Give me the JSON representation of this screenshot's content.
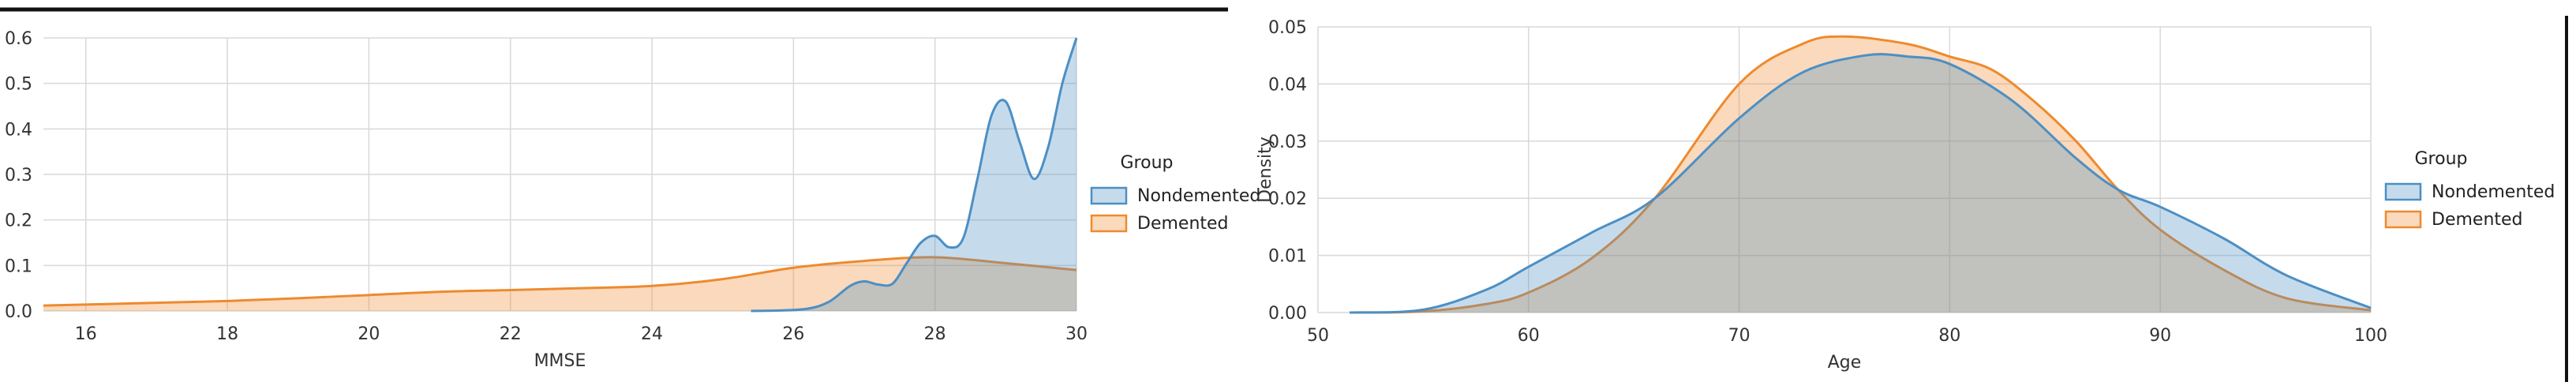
{
  "colors": {
    "nondemented": "#4c8fc4",
    "demented": "#ee8a2e",
    "grid": "#d9d9d9"
  },
  "chart_data": [
    {
      "type": "area",
      "xlabel": "MMSE",
      "ylabel": "",
      "xlim": [
        15.4,
        30
      ],
      "ylim": [
        0,
        0.6
      ],
      "xticks": [
        "16",
        "18",
        "20",
        "22",
        "24",
        "26",
        "28",
        "30"
      ],
      "yticks": [
        "0.0",
        "0.1",
        "0.2",
        "0.3",
        "0.4",
        "0.5",
        "0.6"
      ],
      "grid": true,
      "legend": {
        "title": "Group",
        "placement": "right",
        "entries": [
          "Nondemented",
          "Demented"
        ]
      },
      "series": [
        {
          "name": "Nondemented",
          "x": [
            25.4,
            25.8,
            26.2,
            26.5,
            26.8,
            27.0,
            27.2,
            27.4,
            27.6,
            27.8,
            28.0,
            28.2,
            28.4,
            28.6,
            28.8,
            29.0,
            29.2,
            29.4,
            29.6,
            29.8,
            30.0
          ],
          "y": [
            0.0,
            0.001,
            0.005,
            0.02,
            0.055,
            0.065,
            0.058,
            0.06,
            0.105,
            0.15,
            0.165,
            0.14,
            0.16,
            0.29,
            0.43,
            0.46,
            0.37,
            0.29,
            0.36,
            0.5,
            0.6
          ]
        },
        {
          "name": "Demented",
          "x": [
            15.4,
            16,
            17,
            18,
            19,
            20,
            21,
            22,
            23,
            24,
            25,
            26,
            27,
            28,
            29,
            30
          ],
          "y": [
            0.012,
            0.014,
            0.018,
            0.022,
            0.028,
            0.035,
            0.042,
            0.046,
            0.05,
            0.055,
            0.07,
            0.095,
            0.11,
            0.118,
            0.105,
            0.09
          ]
        }
      ]
    },
    {
      "type": "area",
      "xlabel": "Age",
      "ylabel": "Density",
      "xlim": [
        50,
        100
      ],
      "ylim": [
        0,
        0.05
      ],
      "xticks": [
        "50",
        "60",
        "70",
        "80",
        "90",
        "100"
      ],
      "yticks": [
        "0.00",
        "0.01",
        "0.02",
        "0.03",
        "0.04",
        "0.05"
      ],
      "grid": true,
      "legend": {
        "title": "Group",
        "placement": "right",
        "entries": [
          "Nondemented",
          "Demented"
        ]
      },
      "series": [
        {
          "name": "Nondemented",
          "x": [
            51.5,
            55,
            58,
            60,
            63,
            66,
            70,
            73,
            76,
            78,
            80,
            83,
            86,
            88,
            90,
            93,
            96,
            100
          ],
          "y": [
            0.0,
            0.0005,
            0.004,
            0.008,
            0.014,
            0.02,
            0.034,
            0.042,
            0.045,
            0.0448,
            0.0435,
            0.037,
            0.027,
            0.0215,
            0.0185,
            0.013,
            0.0065,
            0.0008
          ]
        },
        {
          "name": "Demented",
          "x": [
            51.5,
            55,
            58,
            60,
            63,
            66,
            70,
            73,
            75,
            78,
            80,
            82,
            84,
            86,
            88,
            90,
            93,
            96,
            100
          ],
          "y": [
            0.0,
            0.0002,
            0.0015,
            0.0035,
            0.0095,
            0.02,
            0.04,
            0.047,
            0.0483,
            0.047,
            0.0448,
            0.0425,
            0.037,
            0.03,
            0.0215,
            0.0145,
            0.0075,
            0.0025,
            0.0004
          ]
        }
      ]
    }
  ]
}
